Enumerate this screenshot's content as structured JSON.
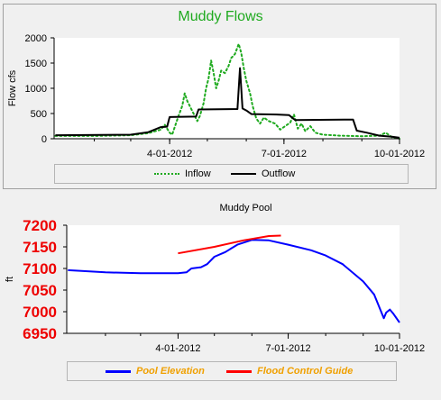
{
  "chart_data": [
    {
      "type": "line",
      "title": "Muddy Flows",
      "ylabel": "Flow cfs",
      "xlabel": "",
      "ylim": [
        0,
        2000
      ],
      "y_ticks": [
        "0",
        "500",
        "1000",
        "1500",
        "2000"
      ],
      "x_ticks": [
        "4-01-2012",
        "7-01-2012",
        "10-01-2012"
      ],
      "x_range": [
        "2011-12-31",
        "2012-10-01"
      ],
      "grid": false,
      "legend": "bottom",
      "series": [
        {
          "name": "Inflow",
          "color": "#1faa1f",
          "style": "dotted",
          "points": [
            [
              "2012-01-01",
              55
            ],
            [
              "2012-02-01",
              55
            ],
            [
              "2012-03-01",
              70
            ],
            [
              "2012-03-15",
              110
            ],
            [
              "2012-03-25",
              180
            ],
            [
              "2012-03-28",
              280
            ],
            [
              "2012-04-01",
              120
            ],
            [
              "2012-04-03",
              80
            ],
            [
              "2012-04-08",
              450
            ],
            [
              "2012-04-11",
              650
            ],
            [
              "2012-04-13",
              900
            ],
            [
              "2012-04-15",
              750
            ],
            [
              "2012-04-18",
              600
            ],
            [
              "2012-04-20",
              500
            ],
            [
              "2012-04-23",
              350
            ],
            [
              "2012-04-25",
              450
            ],
            [
              "2012-04-28",
              700
            ],
            [
              "2012-04-30",
              1000
            ],
            [
              "2012-05-02",
              1200
            ],
            [
              "2012-05-04",
              1550
            ],
            [
              "2012-05-06",
              1300
            ],
            [
              "2012-05-08",
              1000
            ],
            [
              "2012-05-10",
              1150
            ],
            [
              "2012-05-12",
              1350
            ],
            [
              "2012-05-15",
              1300
            ],
            [
              "2012-05-18",
              1450
            ],
            [
              "2012-05-20",
              1600
            ],
            [
              "2012-05-23",
              1680
            ],
            [
              "2012-05-26",
              1880
            ],
            [
              "2012-05-28",
              1700
            ],
            [
              "2012-05-30",
              1400
            ],
            [
              "2012-06-01",
              1150
            ],
            [
              "2012-06-04",
              900
            ],
            [
              "2012-06-06",
              650
            ],
            [
              "2012-06-09",
              400
            ],
            [
              "2012-06-12",
              300
            ],
            [
              "2012-06-15",
              420
            ],
            [
              "2012-06-19",
              350
            ],
            [
              "2012-06-24",
              300
            ],
            [
              "2012-06-28",
              180
            ],
            [
              "2012-07-02",
              250
            ],
            [
              "2012-07-06",
              320
            ],
            [
              "2012-07-09",
              480
            ],
            [
              "2012-07-12",
              200
            ],
            [
              "2012-07-15",
              300
            ],
            [
              "2012-07-18",
              150
            ],
            [
              "2012-07-22",
              250
            ],
            [
              "2012-07-26",
              120
            ],
            [
              "2012-08-01",
              80
            ],
            [
              "2012-08-15",
              60
            ],
            [
              "2012-09-01",
              50
            ],
            [
              "2012-09-15",
              60
            ],
            [
              "2012-09-20",
              120
            ],
            [
              "2012-09-25",
              30
            ],
            [
              "2012-10-01",
              0
            ]
          ]
        },
        {
          "name": "Outflow",
          "color": "#000000",
          "style": "solid",
          "points": [
            [
              "2012-01-01",
              70
            ],
            [
              "2012-03-01",
              80
            ],
            [
              "2012-03-15",
              130
            ],
            [
              "2012-03-25",
              230
            ],
            [
              "2012-03-30",
              240
            ],
            [
              "2012-04-01",
              430
            ],
            [
              "2012-04-22",
              440
            ],
            [
              "2012-04-24",
              580
            ],
            [
              "2012-05-25",
              590
            ],
            [
              "2012-05-27",
              1400
            ],
            [
              "2012-05-29",
              600
            ],
            [
              "2012-06-01",
              560
            ],
            [
              "2012-06-05",
              490
            ],
            [
              "2012-06-25",
              480
            ],
            [
              "2012-07-05",
              470
            ],
            [
              "2012-07-10",
              370
            ],
            [
              "2012-08-25",
              380
            ],
            [
              "2012-08-28",
              160
            ],
            [
              "2012-09-05",
              120
            ],
            [
              "2012-09-15",
              60
            ],
            [
              "2012-09-25",
              40
            ],
            [
              "2012-10-01",
              20
            ]
          ]
        }
      ]
    },
    {
      "type": "line",
      "title": "Muddy Pool",
      "ylabel": "ft",
      "xlabel": "",
      "ylim": [
        6950,
        7200
      ],
      "y_ticks": [
        "6950",
        "7000",
        "7050",
        "7100",
        "7150",
        "7200"
      ],
      "x_ticks": [
        "4-01-2012",
        "7-01-2012",
        "10-01-2012"
      ],
      "x_range": [
        "2011-12-31",
        "2012-10-01"
      ],
      "grid": false,
      "legend": "bottom",
      "series": [
        {
          "name": "Pool Elevation",
          "color": "#0000ff",
          "style": "solid",
          "points": [
            [
              "2012-01-01",
              7096
            ],
            [
              "2012-02-01",
              7091
            ],
            [
              "2012-03-01",
              7089
            ],
            [
              "2012-04-01",
              7089
            ],
            [
              "2012-04-08",
              7091
            ],
            [
              "2012-04-12",
              7100
            ],
            [
              "2012-04-20",
              7103
            ],
            [
              "2012-04-25",
              7110
            ],
            [
              "2012-05-01",
              7127
            ],
            [
              "2012-05-10",
              7138
            ],
            [
              "2012-05-20",
              7155
            ],
            [
              "2012-06-01",
              7166
            ],
            [
              "2012-06-15",
              7165
            ],
            [
              "2012-07-01",
              7155
            ],
            [
              "2012-07-20",
              7142
            ],
            [
              "2012-08-01",
              7130
            ],
            [
              "2012-08-15",
              7110
            ],
            [
              "2012-09-01",
              7070
            ],
            [
              "2012-09-10",
              7040
            ],
            [
              "2012-09-18",
              6985
            ],
            [
              "2012-09-20",
              6998
            ],
            [
              "2012-09-23",
              7005
            ],
            [
              "2012-09-26",
              6995
            ],
            [
              "2012-10-01",
              6975
            ]
          ]
        },
        {
          "name": "Flood Control Guide",
          "color": "#ff0000",
          "style": "solid",
          "points": [
            [
              "2012-04-01",
              7135
            ],
            [
              "2012-05-01",
              7150
            ],
            [
              "2012-05-25",
              7165
            ],
            [
              "2012-06-15",
              7175
            ],
            [
              "2012-06-25",
              7176
            ]
          ]
        }
      ]
    }
  ]
}
